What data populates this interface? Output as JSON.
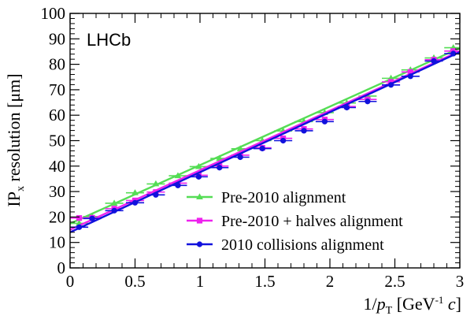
{
  "chart_data": {
    "type": "line",
    "annotation": "LHCb",
    "xlabel": {
      "prefix": "1/",
      "var": "p",
      "sub": "T",
      "bracket": " [GeV",
      "sup": "-1",
      "suffix": " ",
      "unit_var": "c",
      "close": "]"
    },
    "ylabel": {
      "prefix": "IP",
      "sub": "x",
      "suffix": " resolution [μm]"
    },
    "xlim": [
      0,
      3
    ],
    "ylim": [
      0,
      100
    ],
    "x_ticks": [
      0,
      0.5,
      1,
      1.5,
      2,
      2.5,
      3
    ],
    "x_tick_labels": [
      "0",
      "0.5",
      "1",
      "1.5",
      "2",
      "2.5",
      "3"
    ],
    "y_ticks": [
      0,
      10,
      20,
      30,
      40,
      50,
      60,
      70,
      80,
      90,
      100
    ],
    "y_tick_labels": [
      "0",
      "10",
      "20",
      "30",
      "40",
      "50",
      "60",
      "70",
      "80",
      "90",
      "100"
    ],
    "legend_position": "bottom-right",
    "series": [
      {
        "name": "Pre-2010 alignment",
        "color": "#55dd55",
        "marker": "triangle",
        "fit": {
          "intercept": 17.4,
          "slope": 23.0
        },
        "x": [
          0.07,
          0.17,
          0.34,
          0.5,
          0.66,
          0.83,
          0.99,
          1.15,
          1.31,
          1.48,
          1.64,
          1.8,
          1.96,
          2.13,
          2.29,
          2.47,
          2.62,
          2.8,
          2.95
        ],
        "y": [
          17.5,
          20.2,
          25.4,
          29.5,
          33.0,
          36.2,
          39.8,
          43.0,
          46.8,
          50.0,
          53.8,
          57.5,
          61.0,
          64.8,
          67.5,
          74.5,
          77.8,
          82.5,
          86.5
        ]
      },
      {
        "name": "Pre-2010 + halves alignment",
        "color": "#ee22ee",
        "marker": "square",
        "fit": {
          "intercept": 15.0,
          "slope": 23.4
        },
        "x": [
          0.07,
          0.17,
          0.34,
          0.5,
          0.66,
          0.83,
          0.99,
          1.15,
          1.31,
          1.48,
          1.64,
          1.8,
          1.96,
          2.13,
          2.29,
          2.47,
          2.62,
          2.8,
          2.95
        ],
        "y": [
          19.6,
          19.7,
          23.3,
          26.5,
          29.8,
          33.3,
          36.4,
          40.0,
          44.3,
          47.2,
          50.9,
          54.6,
          58.3,
          63.4,
          66.2,
          73.1,
          77.0,
          81.8,
          85.2
        ]
      },
      {
        "name": "2010 collisions alignment",
        "color": "#1111dd",
        "marker": "circle",
        "fit": {
          "intercept": 14.0,
          "slope": 23.6
        },
        "x": [
          0.07,
          0.17,
          0.34,
          0.5,
          0.66,
          0.83,
          0.99,
          1.15,
          1.31,
          1.48,
          1.64,
          1.8,
          1.96,
          2.13,
          2.29,
          2.47,
          2.62,
          2.8,
          2.95
        ],
        "y": [
          16.0,
          19.4,
          22.5,
          25.6,
          28.7,
          32.4,
          35.8,
          39.4,
          43.5,
          46.9,
          50.0,
          53.9,
          57.5,
          63.0,
          65.4,
          71.9,
          75.3,
          81.3,
          84.2
        ]
      }
    ]
  }
}
